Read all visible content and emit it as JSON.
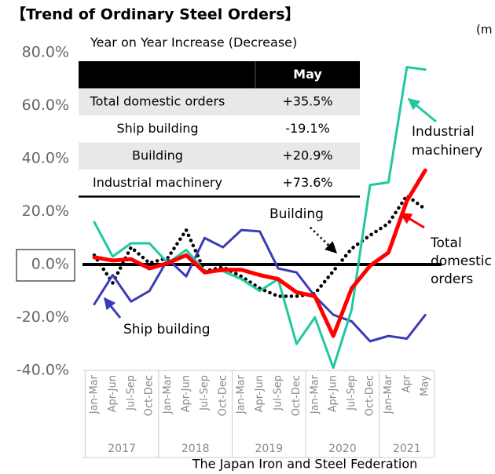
{
  "chart_data": {
    "type": "line",
    "title": "【Trend of Ordinary Steel Orders】",
    "subtitle": "Year on Year Increase (Decrease)",
    "unit_note": "(m",
    "source": "The Japan Iron and Steel Federation",
    "categories": [
      "Jan-Mar",
      "Apr-Jun",
      "Jul-Sep",
      "Oct-Dec",
      "Jan-Mar",
      "Apr-Jun",
      "Jul-Sep",
      "Oct-Dec",
      "Jan-Mar",
      "Apr-Jun",
      "Jul-Sep",
      "Oct-Dec",
      "Jan-Mar",
      "Apr-Jun",
      "Jul-Sep",
      "Oct-Dec",
      "Jan-Mar",
      "Apr",
      "May"
    ],
    "category_years": [
      "2017",
      "2017",
      "2017",
      "2017",
      "2018",
      "2018",
      "2018",
      "2018",
      "2019",
      "2019",
      "2019",
      "2019",
      "2020",
      "2020",
      "2020",
      "2020",
      "2021",
      "2021",
      "2021"
    ],
    "ylim": [
      -40,
      80
    ],
    "yticks": [
      {
        "value": -40,
        "label": "-40.0%"
      },
      {
        "value": -20,
        "label": "-20.0%"
      },
      {
        "value": 0,
        "label": "0.0%"
      },
      {
        "value": 20,
        "label": "20.0%"
      },
      {
        "value": 40,
        "label": "40.0%"
      },
      {
        "value": 60,
        "label": "60.0%"
      },
      {
        "value": 80,
        "label": "80.0%"
      }
    ],
    "series": [
      {
        "name": "Building",
        "color": "#000000",
        "dash": true,
        "values": [
          3.5,
          -7,
          6.5,
          0.5,
          2.5,
          13,
          -2.5,
          -1,
          -4.5,
          -9,
          -12,
          -12,
          -11,
          -2.5,
          6,
          11,
          15.5,
          26,
          20.9
        ]
      },
      {
        "name": "Ship building",
        "color": "#3b3bb8",
        "values": [
          -15,
          -4,
          -14,
          -10,
          2,
          -4.5,
          10,
          6.5,
          13,
          12.5,
          -1.5,
          -3,
          -12,
          -19,
          -21.5,
          -29,
          -27,
          -28,
          -19.1
        ]
      },
      {
        "name": "Industrial machinery",
        "color": "#20c8a0",
        "values": [
          16,
          3,
          8,
          8,
          0.5,
          5.5,
          -2.5,
          -2.5,
          -5.5,
          -10,
          -5.5,
          -30,
          -20,
          -39,
          -17,
          30,
          31,
          74.5,
          73.6
        ]
      },
      {
        "name": "Total domestic orders",
        "color": "#ff0000",
        "values": [
          2.7,
          1.5,
          2,
          -1.5,
          0.5,
          3.5,
          -3,
          -2,
          -2,
          -4,
          -5.5,
          -10.5,
          -12,
          -27,
          -9,
          -0.5,
          4.5,
          24,
          35.5
        ]
      }
    ],
    "annotations": {
      "industrial": [
        "Industrial",
        "machinery"
      ],
      "building": [
        "Building"
      ],
      "total": [
        "Total",
        "domestic",
        "orders"
      ],
      "ship": [
        "Ship building"
      ]
    },
    "table": {
      "column": "May",
      "rows": [
        {
          "label": "Total domestic orders",
          "value": "+35.5%"
        },
        {
          "label": "Ship building",
          "value": "-19.1%"
        },
        {
          "label": "Building",
          "value": "+20.9%"
        },
        {
          "label": "Industrial machinery",
          "value": "+73.6%"
        }
      ]
    }
  }
}
